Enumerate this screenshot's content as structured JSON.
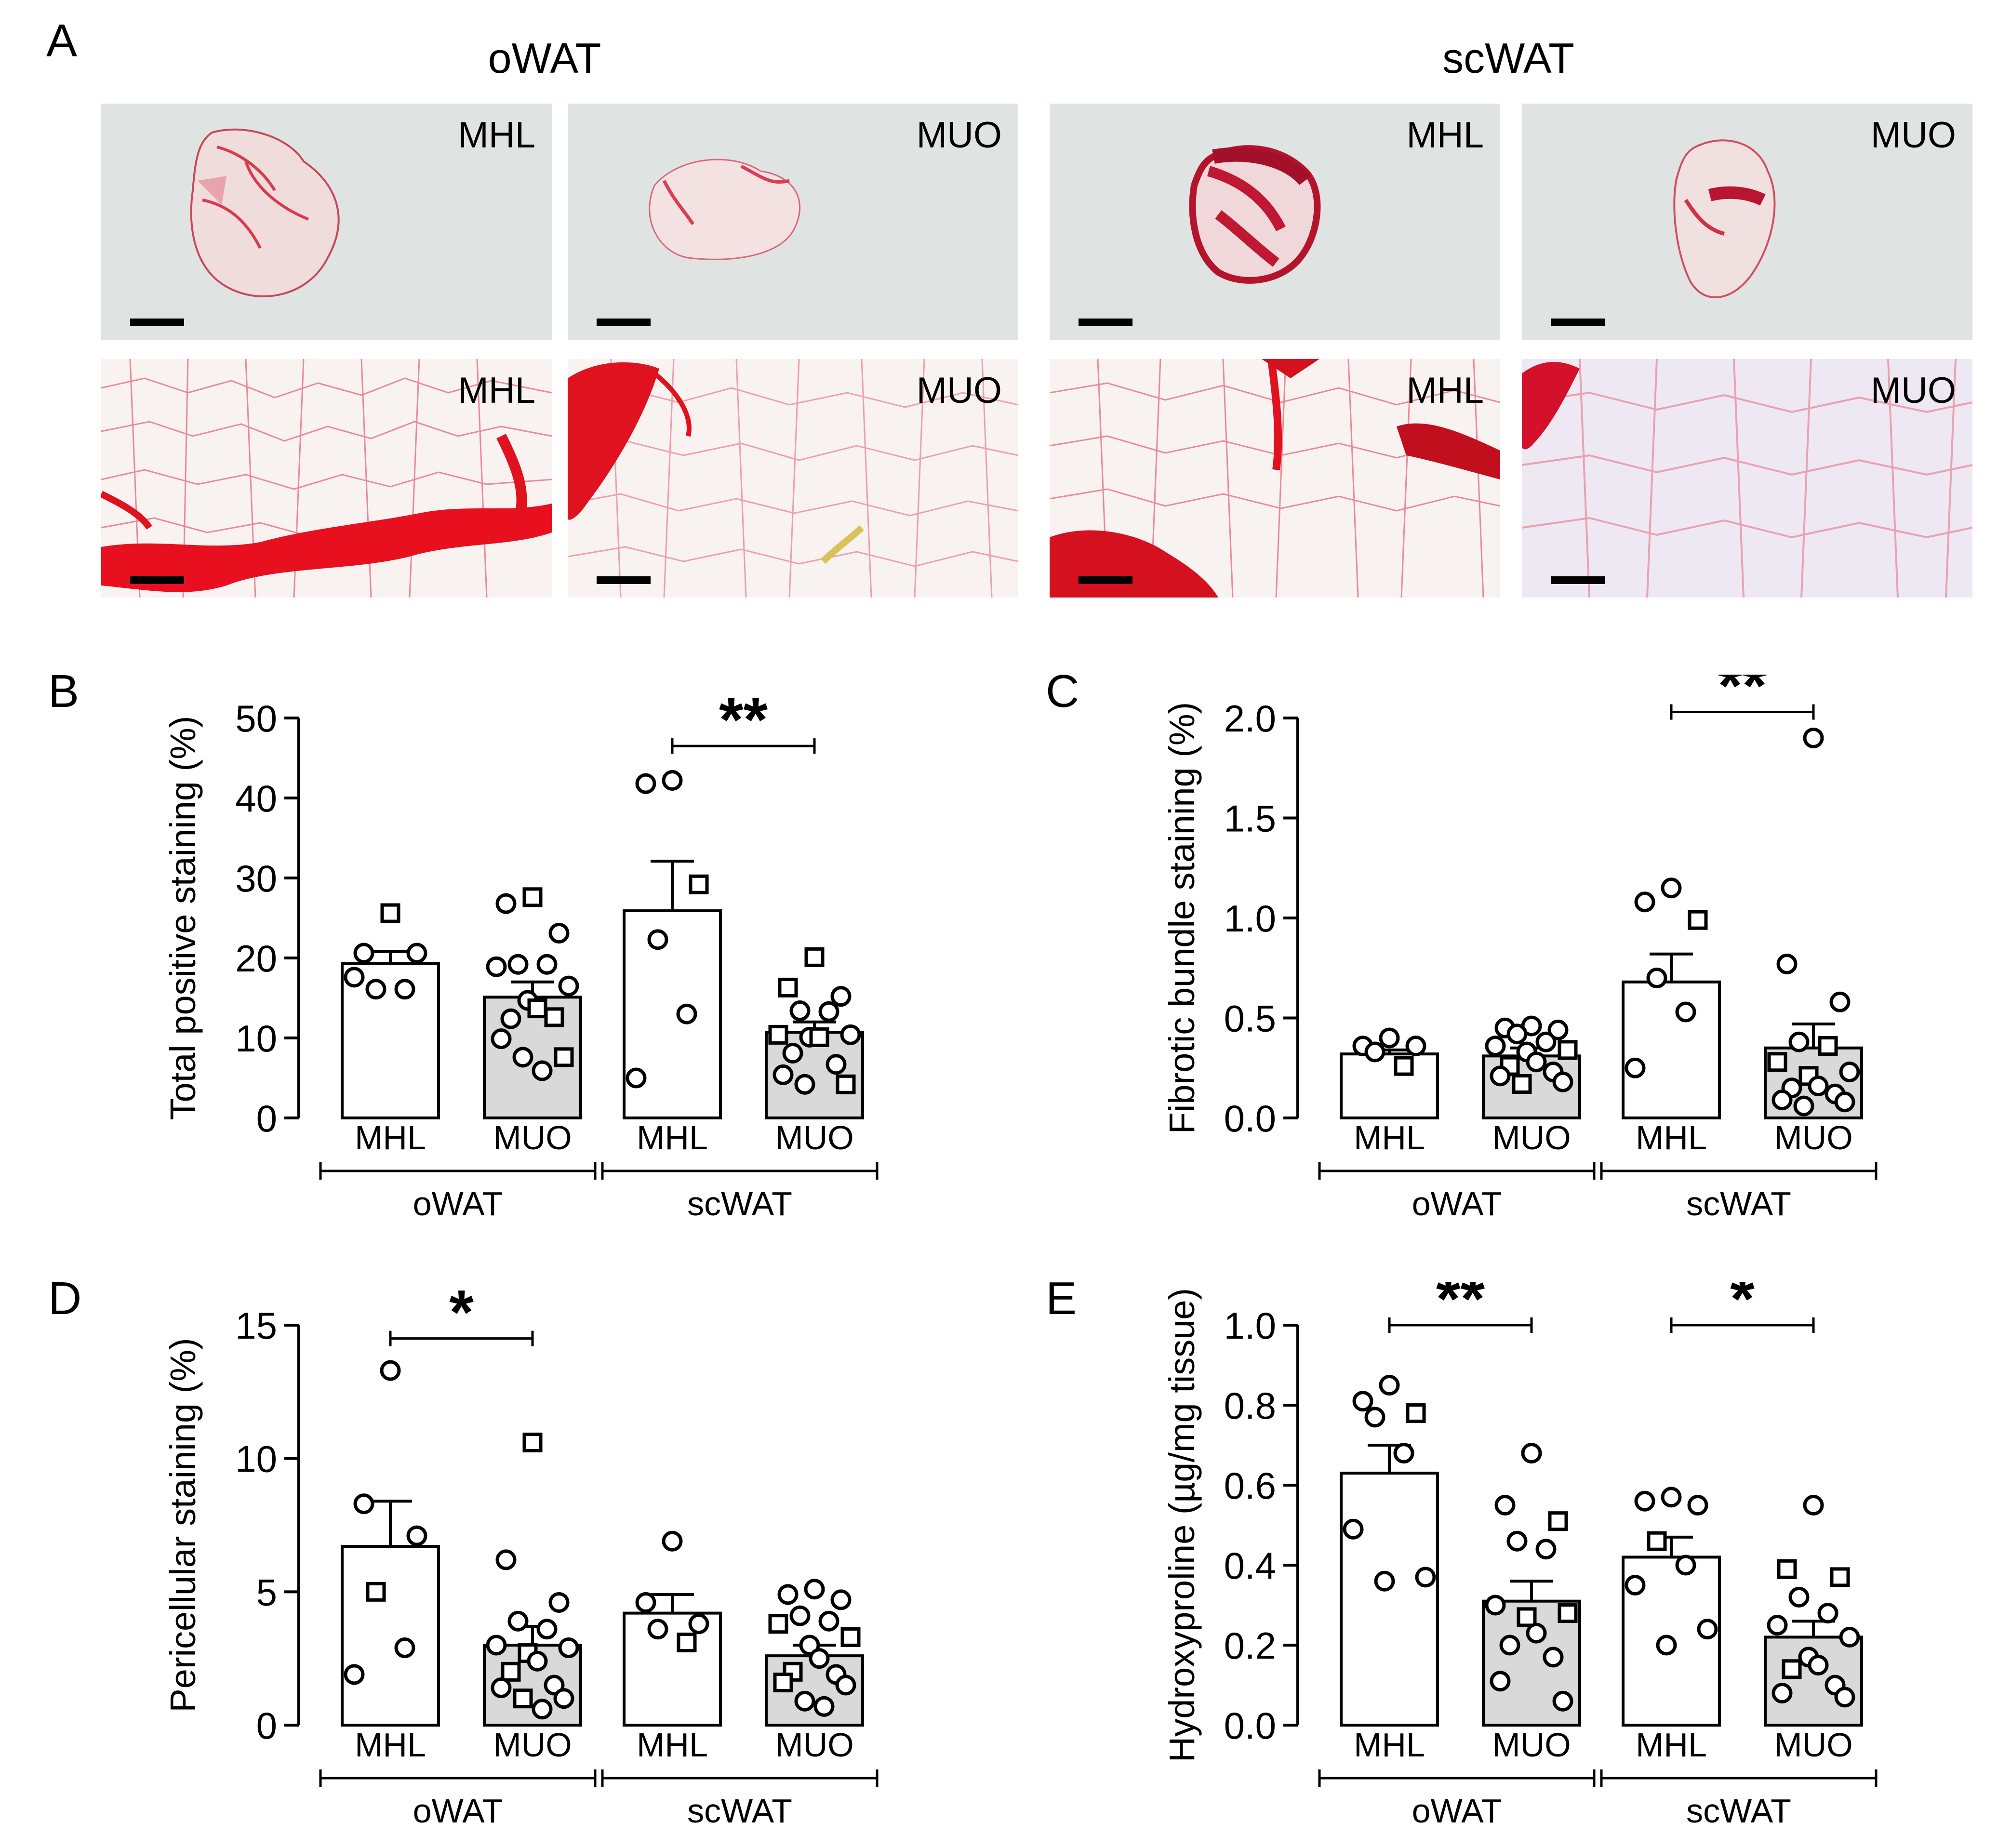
{
  "panel_a": {
    "letter": "A",
    "groups": [
      "oWAT",
      "scWAT"
    ],
    "images": [
      {
        "label": "MHL",
        "tissue": "oWAT",
        "row": "low-magnification",
        "style": "lowmag-a"
      },
      {
        "label": "MUO",
        "tissue": "oWAT",
        "row": "low-magnification",
        "style": "lowmag-b"
      },
      {
        "label": "MHL",
        "tissue": "scWAT",
        "row": "low-magnification",
        "style": "lowmag-c"
      },
      {
        "label": "MUO",
        "tissue": "scWAT",
        "row": "low-magnification",
        "style": "lowmag-d"
      },
      {
        "label": "MHL",
        "tissue": "oWAT",
        "row": "high-magnification",
        "style": "highmag-a"
      },
      {
        "label": "MUO",
        "tissue": "oWAT",
        "row": "high-magnification",
        "style": "highmag-b"
      },
      {
        "label": "MHL",
        "tissue": "scWAT",
        "row": "high-magnification",
        "style": "highmag-c"
      },
      {
        "label": "MUO",
        "tissue": "scWAT",
        "row": "high-magnification",
        "style": "highmag-d"
      }
    ],
    "colors": {
      "stain": "#e3132b",
      "background_low": "#dfe5e3",
      "background_high": "#f7f2f0"
    }
  },
  "chart_data": [
    {
      "panel": "B",
      "type": "bar",
      "ylabel": "Total positive staining (%)",
      "ylim": [
        0,
        50
      ],
      "yticks": [
        "0",
        "10",
        "20",
        "30",
        "40",
        "50"
      ],
      "categories": [
        "MHL",
        "MUO",
        "MHL",
        "MUO"
      ],
      "groups": [
        {
          "label": "oWAT",
          "bars": [
            0,
            1
          ]
        },
        {
          "label": "scWAT",
          "bars": [
            2,
            3
          ]
        }
      ],
      "values": [
        19.3,
        15.1,
        25.9,
        10.7
      ],
      "sem": [
        1.5,
        1.9,
        6.2,
        1.3
      ],
      "fills": [
        "#ffffff",
        "#d9d9d9",
        "#ffffff",
        "#d9d9d9"
      ],
      "points": [
        [
          {
            "y": 25.6,
            "m": "s"
          },
          {
            "y": 20.6,
            "m": "c"
          },
          {
            "y": 20.6,
            "m": "c"
          },
          {
            "y": 16.1,
            "m": "c"
          },
          {
            "y": 16.1,
            "m": "c"
          },
          {
            "y": 17.6,
            "m": "c"
          }
        ],
        [
          {
            "y": 27.6,
            "m": "s"
          },
          {
            "y": 26.8,
            "m": "c"
          },
          {
            "y": 23.1,
            "m": "c"
          },
          {
            "y": 19.2,
            "m": "c"
          },
          {
            "y": 19.2,
            "m": "c"
          },
          {
            "y": 18.9,
            "m": "c"
          },
          {
            "y": 16.5,
            "m": "c"
          },
          {
            "y": 14.7,
            "m": "c"
          },
          {
            "y": 13.7,
            "m": "s"
          },
          {
            "y": 12.4,
            "m": "c"
          },
          {
            "y": 12.6,
            "m": "s"
          },
          {
            "y": 9.9,
            "m": "c"
          },
          {
            "y": 7.6,
            "m": "s"
          },
          {
            "y": 7.6,
            "m": "c"
          },
          {
            "y": 5.9,
            "m": "c"
          }
        ],
        [
          {
            "y": 42.2,
            "m": "c"
          },
          {
            "y": 41.8,
            "m": "c"
          },
          {
            "y": 29.2,
            "m": "s"
          },
          {
            "y": 22.3,
            "m": "c"
          },
          {
            "y": 13.0,
            "m": "c"
          },
          {
            "y": 5.0,
            "m": "c"
          }
        ],
        [
          {
            "y": 20.1,
            "m": "s"
          },
          {
            "y": 16.3,
            "m": "s"
          },
          {
            "y": 15.2,
            "m": "c"
          },
          {
            "y": 13.4,
            "m": "c"
          },
          {
            "y": 13.3,
            "m": "c"
          },
          {
            "y": 10.4,
            "m": "s"
          },
          {
            "y": 10.4,
            "m": "c"
          },
          {
            "y": 10.1,
            "m": "c"
          },
          {
            "y": 10.1,
            "m": "s"
          },
          {
            "y": 8.1,
            "m": "c"
          },
          {
            "y": 6.7,
            "m": "c"
          },
          {
            "y": 5.4,
            "m": "c"
          },
          {
            "y": 4.2,
            "m": "s"
          },
          {
            "y": 4.2,
            "m": "c"
          }
        ]
      ],
      "significance": [
        {
          "from": 2,
          "to": 3,
          "label": "**",
          "y": 46.5
        }
      ]
    },
    {
      "panel": "C",
      "type": "bar",
      "ylabel": "Fibrotic bundle staining (%)",
      "ylim": [
        0,
        2.0
      ],
      "yticks": [
        "0.0",
        "0.5",
        "1.0",
        "1.5",
        "2.0"
      ],
      "categories": [
        "MHL",
        "MUO",
        "MHL",
        "MUO"
      ],
      "groups": [
        {
          "label": "oWAT",
          "bars": [
            0,
            1
          ]
        },
        {
          "label": "scWAT",
          "bars": [
            2,
            3
          ]
        }
      ],
      "values": [
        0.32,
        0.31,
        0.68,
        0.35
      ],
      "sem": [
        0.02,
        0.04,
        0.14,
        0.12
      ],
      "fills": [
        "#ffffff",
        "#d9d9d9",
        "#ffffff",
        "#d9d9d9"
      ],
      "points": [
        [
          {
            "y": 0.4,
            "m": "c"
          },
          {
            "y": 0.36,
            "m": "c"
          },
          {
            "y": 0.36,
            "m": "c"
          },
          {
            "y": 0.33,
            "m": "c"
          },
          {
            "y": 0.26,
            "m": "s"
          }
        ],
        [
          {
            "y": 0.46,
            "m": "c"
          },
          {
            "y": 0.45,
            "m": "c"
          },
          {
            "y": 0.44,
            "m": "c"
          },
          {
            "y": 0.42,
            "m": "c"
          },
          {
            "y": 0.38,
            "m": "c"
          },
          {
            "y": 0.36,
            "m": "c"
          },
          {
            "y": 0.34,
            "m": "s"
          },
          {
            "y": 0.33,
            "m": "c"
          },
          {
            "y": 0.28,
            "m": "c"
          },
          {
            "y": 0.26,
            "m": "s"
          },
          {
            "y": 0.23,
            "m": "c"
          },
          {
            "y": 0.21,
            "m": "c"
          },
          {
            "y": 0.18,
            "m": "c"
          },
          {
            "y": 0.17,
            "m": "s"
          }
        ],
        [
          {
            "y": 1.15,
            "m": "c"
          },
          {
            "y": 1.08,
            "m": "c"
          },
          {
            "y": 0.99,
            "m": "s"
          },
          {
            "y": 0.7,
            "m": "c"
          },
          {
            "y": 0.53,
            "m": "c"
          },
          {
            "y": 0.25,
            "m": "c"
          }
        ],
        [
          {
            "y": 1.9,
            "m": "c"
          },
          {
            "y": 0.77,
            "m": "c"
          },
          {
            "y": 0.58,
            "m": "c"
          },
          {
            "y": 0.38,
            "m": "c"
          },
          {
            "y": 0.36,
            "m": "s"
          },
          {
            "y": 0.28,
            "m": "s"
          },
          {
            "y": 0.23,
            "m": "c"
          },
          {
            "y": 0.21,
            "m": "s"
          },
          {
            "y": 0.16,
            "m": "c"
          },
          {
            "y": 0.15,
            "m": "c"
          },
          {
            "y": 0.12,
            "m": "c"
          },
          {
            "y": 0.09,
            "m": "c"
          },
          {
            "y": 0.08,
            "m": "c"
          },
          {
            "y": 0.06,
            "m": "c"
          }
        ]
      ],
      "significance": [
        {
          "from": 2,
          "to": 3,
          "label": "**",
          "y": 2.03
        }
      ]
    },
    {
      "panel": "D",
      "type": "bar",
      "ylabel": "Pericellular staining (%)",
      "ylim": [
        0,
        15
      ],
      "yticks": [
        "0",
        "5",
        "10",
        "15"
      ],
      "categories": [
        "MHL",
        "MUO",
        "MHL",
        "MUO"
      ],
      "groups": [
        {
          "label": "oWAT",
          "bars": [
            0,
            1
          ]
        },
        {
          "label": "scWAT",
          "bars": [
            2,
            3
          ]
        }
      ],
      "values": [
        6.7,
        3.0,
        4.2,
        2.6
      ],
      "sem": [
        1.7,
        0.7,
        0.7,
        0.4
      ],
      "fills": [
        "#ffffff",
        "#d9d9d9",
        "#ffffff",
        "#d9d9d9"
      ],
      "points": [
        [
          {
            "y": 13.3,
            "m": "c"
          },
          {
            "y": 8.3,
            "m": "c"
          },
          {
            "y": 7.1,
            "m": "c"
          },
          {
            "y": 5.0,
            "m": "s"
          },
          {
            "y": 2.9,
            "m": "c"
          },
          {
            "y": 1.9,
            "m": "c"
          }
        ],
        [
          {
            "y": 10.6,
            "m": "s"
          },
          {
            "y": 6.2,
            "m": "c"
          },
          {
            "y": 4.6,
            "m": "c"
          },
          {
            "y": 3.9,
            "m": "c"
          },
          {
            "y": 3.6,
            "m": "c"
          },
          {
            "y": 3.0,
            "m": "c"
          },
          {
            "y": 2.9,
            "m": "c"
          },
          {
            "y": 2.7,
            "m": "s"
          },
          {
            "y": 2.4,
            "m": "c"
          },
          {
            "y": 2.0,
            "m": "s"
          },
          {
            "y": 1.5,
            "m": "c"
          },
          {
            "y": 1.4,
            "m": "c"
          },
          {
            "y": 1.0,
            "m": "c"
          },
          {
            "y": 1.0,
            "m": "s"
          },
          {
            "y": 0.6,
            "m": "c"
          }
        ],
        [
          {
            "y": 6.9,
            "m": "c"
          },
          {
            "y": 4.6,
            "m": "c"
          },
          {
            "y": 3.8,
            "m": "c"
          },
          {
            "y": 3.6,
            "m": "c"
          },
          {
            "y": 3.1,
            "m": "s"
          }
        ],
        [
          {
            "y": 5.1,
            "m": "c"
          },
          {
            "y": 4.9,
            "m": "c"
          },
          {
            "y": 4.7,
            "m": "c"
          },
          {
            "y": 4.1,
            "m": "c"
          },
          {
            "y": 3.9,
            "m": "c"
          },
          {
            "y": 3.8,
            "m": "s"
          },
          {
            "y": 3.3,
            "m": "s"
          },
          {
            "y": 3.0,
            "m": "c"
          },
          {
            "y": 2.5,
            "m": "c"
          },
          {
            "y": 2.0,
            "m": "s"
          },
          {
            "y": 1.9,
            "m": "c"
          },
          {
            "y": 1.6,
            "m": "s"
          },
          {
            "y": 1.5,
            "m": "c"
          },
          {
            "y": 0.9,
            "m": "c"
          },
          {
            "y": 0.7,
            "m": "c"
          }
        ]
      ],
      "significance": [
        {
          "from": 0,
          "to": 1,
          "label": "*",
          "y": 14.5
        }
      ]
    },
    {
      "panel": "E",
      "type": "bar",
      "ylabel": "Hydroxyproline (µg/mg tissue)",
      "ylim": [
        0,
        1.0
      ],
      "yticks": [
        "0.0",
        "0.2",
        "0.4",
        "0.6",
        "0.8",
        "1.0"
      ],
      "categories": [
        "MHL",
        "MUO",
        "MHL",
        "MUO"
      ],
      "groups": [
        {
          "label": "oWAT",
          "bars": [
            0,
            1
          ]
        },
        {
          "label": "scWAT",
          "bars": [
            2,
            3
          ]
        }
      ],
      "values": [
        0.63,
        0.31,
        0.42,
        0.22
      ],
      "sem": [
        0.07,
        0.05,
        0.05,
        0.04
      ],
      "fills": [
        "#ffffff",
        "#d9d9d9",
        "#ffffff",
        "#d9d9d9"
      ],
      "points": [
        [
          {
            "y": 0.85,
            "m": "c"
          },
          {
            "y": 0.81,
            "m": "c"
          },
          {
            "y": 0.78,
            "m": "s"
          },
          {
            "y": 0.77,
            "m": "c"
          },
          {
            "y": 0.68,
            "m": "c"
          },
          {
            "y": 0.49,
            "m": "c"
          },
          {
            "y": 0.37,
            "m": "c"
          },
          {
            "y": 0.36,
            "m": "c"
          }
        ],
        [
          {
            "y": 0.68,
            "m": "c"
          },
          {
            "y": 0.55,
            "m": "c"
          },
          {
            "y": 0.51,
            "m": "s"
          },
          {
            "y": 0.46,
            "m": "c"
          },
          {
            "y": 0.44,
            "m": "c"
          },
          {
            "y": 0.3,
            "m": "c"
          },
          {
            "y": 0.28,
            "m": "s"
          },
          {
            "y": 0.27,
            "m": "s"
          },
          {
            "y": 0.23,
            "m": "c"
          },
          {
            "y": 0.2,
            "m": "c"
          },
          {
            "y": 0.17,
            "m": "c"
          },
          {
            "y": 0.11,
            "m": "c"
          },
          {
            "y": 0.06,
            "m": "c"
          }
        ],
        [
          {
            "y": 0.57,
            "m": "c"
          },
          {
            "y": 0.56,
            "m": "c"
          },
          {
            "y": 0.55,
            "m": "c"
          },
          {
            "y": 0.46,
            "m": "s"
          },
          {
            "y": 0.4,
            "m": "c"
          },
          {
            "y": 0.35,
            "m": "c"
          },
          {
            "y": 0.24,
            "m": "c"
          },
          {
            "y": 0.2,
            "m": "c"
          }
        ],
        [
          {
            "y": 0.55,
            "m": "c"
          },
          {
            "y": 0.39,
            "m": "s"
          },
          {
            "y": 0.37,
            "m": "s"
          },
          {
            "y": 0.32,
            "m": "c"
          },
          {
            "y": 0.28,
            "m": "c"
          },
          {
            "y": 0.25,
            "m": "c"
          },
          {
            "y": 0.22,
            "m": "c"
          },
          {
            "y": 0.17,
            "m": "c"
          },
          {
            "y": 0.15,
            "m": "c"
          },
          {
            "y": 0.14,
            "m": "s"
          },
          {
            "y": 0.1,
            "m": "c"
          },
          {
            "y": 0.08,
            "m": "c"
          },
          {
            "y": 0.07,
            "m": "c"
          }
        ]
      ],
      "significance": [
        {
          "from": 0,
          "to": 1,
          "label": "**",
          "y": 1.0
        },
        {
          "from": 2,
          "to": 3,
          "label": "*",
          "y": 1.0
        }
      ]
    }
  ]
}
